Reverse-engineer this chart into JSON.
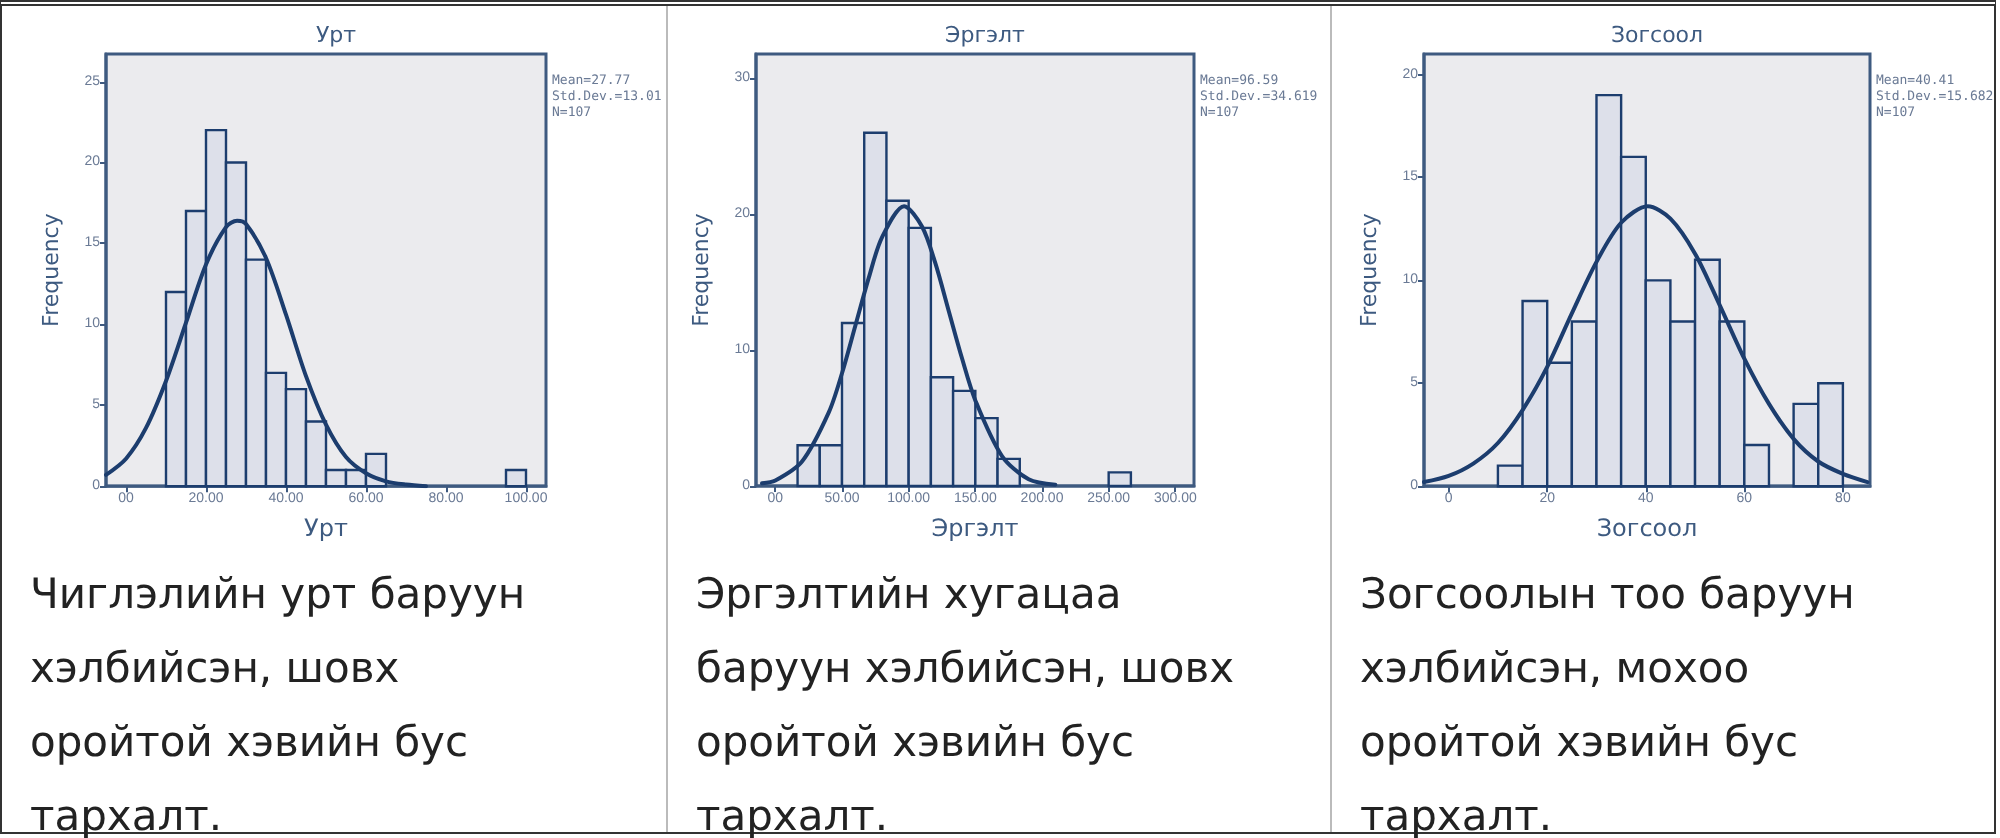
{
  "chart_data": [
    {
      "type": "histogram",
      "title": "Урт",
      "xlabel": "Урт",
      "ylabel": "Frequency",
      "xlim": [
        -5,
        105
      ],
      "ylim": [
        0,
        26.7
      ],
      "xticks": [
        {
          "value": 0,
          "label": "00"
        },
        {
          "value": 20,
          "label": "20.00"
        },
        {
          "value": 40,
          "label": "40.00"
        },
        {
          "value": 60,
          "label": "60.00"
        },
        {
          "value": 80,
          "label": "80.00"
        },
        {
          "value": 100,
          "label": "100.00"
        }
      ],
      "yticks": [
        0,
        5,
        10,
        15,
        20,
        25
      ],
      "grid": false,
      "series": [
        {
          "color": "#dde0ea",
          "bins": [
            10,
            15,
            20,
            25,
            30,
            35,
            40,
            45,
            50,
            55,
            60,
            65,
            70,
            75,
            80,
            85,
            90,
            95,
            100
          ],
          "values": [
            12,
            17,
            22,
            20,
            14,
            7,
            6,
            4,
            1,
            1,
            2,
            0,
            0,
            0,
            0,
            0,
            0,
            1
          ]
        },
        {
          "type": "line",
          "color": "#1c3d6e",
          "x": [
            -5,
            0,
            5,
            10,
            15,
            20,
            25,
            27.77,
            30,
            35,
            40,
            45,
            50,
            55,
            60,
            65,
            70,
            75
          ],
          "values": [
            0.7,
            1.7,
            3.6,
            6.5,
            10.1,
            13.7,
            16.0,
            16.4,
            16.2,
            14.1,
            10.6,
            6.8,
            3.8,
            1.8,
            0.8,
            0.3,
            0.1,
            0.0
          ]
        }
      ],
      "annotations": [
        "Mean=27.77",
        "Std.Dev.=13.01",
        "N=107",
        "Чиглэлийн урт баруун хэлбийсэн, шовх оройтой хэвийн бус тархалт."
      ]
    },
    {
      "type": "histogram",
      "title": "Эргэлт",
      "xlabel": "Эргэлт",
      "ylabel": "Frequency",
      "xlim": [
        -14.5,
        314
      ],
      "ylim": [
        0,
        31.8
      ],
      "xticks": [
        {
          "value": 0,
          "label": "00"
        },
        {
          "value": 50,
          "label": "50.00"
        },
        {
          "value": 100,
          "label": "100.00"
        },
        {
          "value": 150,
          "label": "150.00"
        },
        {
          "value": 200,
          "label": "200.00"
        },
        {
          "value": 250,
          "label": "250.00"
        },
        {
          "value": 300,
          "label": "300.00"
        }
      ],
      "yticks": [
        0,
        10,
        20,
        30
      ],
      "grid": false,
      "series": [
        {
          "color": "#dde0ea",
          "bins": [
            16.67,
            33.33,
            50,
            66.67,
            83.33,
            100,
            116.67,
            133.33,
            150,
            166.67,
            183.33,
            200,
            216.67,
            233.33,
            250,
            266.67
          ],
          "values": [
            3,
            3,
            12,
            26,
            21,
            19,
            8,
            7,
            5,
            2,
            0,
            0,
            0,
            0,
            1
          ]
        },
        {
          "type": "line",
          "color": "#1c3d6e",
          "x": [
            -10,
            0,
            20,
            40,
            50,
            60,
            70,
            80,
            96.59,
            110,
            120,
            130,
            140,
            150,
            170,
            190,
            210
          ],
          "values": [
            0.2,
            0.4,
            1.8,
            5.4,
            8.3,
            11.8,
            15.3,
            18.3,
            20.6,
            19.1,
            16.4,
            12.9,
            9.4,
            6.3,
            2.2,
            0.5,
            0.1
          ]
        }
      ],
      "annotations": [
        "Mean=96.59",
        "Std.Dev.=34.619",
        "N=107",
        "Эргэлтийн хугацаа баруун хэлбийсэн, шовх оройтой хэвийн бус тархалт."
      ]
    },
    {
      "type": "histogram",
      "title": "Зогсоол",
      "xlabel": "Зогсоол",
      "ylabel": "Frequency",
      "xlim": [
        -5,
        85.5
      ],
      "ylim": [
        0,
        21
      ],
      "xticks": [
        0,
        20,
        40,
        60,
        80
      ],
      "yticks": [
        0,
        5,
        10,
        15,
        20
      ],
      "grid": false,
      "series": [
        {
          "color": "#dde0ea",
          "bins": [
            10,
            15,
            20,
            25,
            30,
            35,
            40,
            45,
            50,
            55,
            60,
            65,
            70,
            75,
            80
          ],
          "values": [
            1,
            9,
            6,
            8,
            19,
            16,
            10,
            8,
            11,
            8,
            2,
            0,
            4,
            5
          ]
        },
        {
          "type": "line",
          "color": "#1c3d6e",
          "x": [
            -5,
            0,
            5,
            10,
            15,
            20,
            25,
            30,
            35,
            40.41,
            45,
            50,
            55,
            60,
            65,
            70,
            75,
            80,
            85
          ],
          "values": [
            0.2,
            0.5,
            1.1,
            2.1,
            3.7,
            5.8,
            8.4,
            10.9,
            12.8,
            13.6,
            13.0,
            11.3,
            8.8,
            6.2,
            4.0,
            2.3,
            1.2,
            0.6,
            0.2
          ]
        }
      ],
      "annotations": [
        "Mean=40.41",
        "Std.Dev.=15.682",
        "N=107",
        "Зогсоолын тоо баруун хэлбийсэн, мохоо оройтой хэвийн бус тархалт."
      ]
    }
  ]
}
